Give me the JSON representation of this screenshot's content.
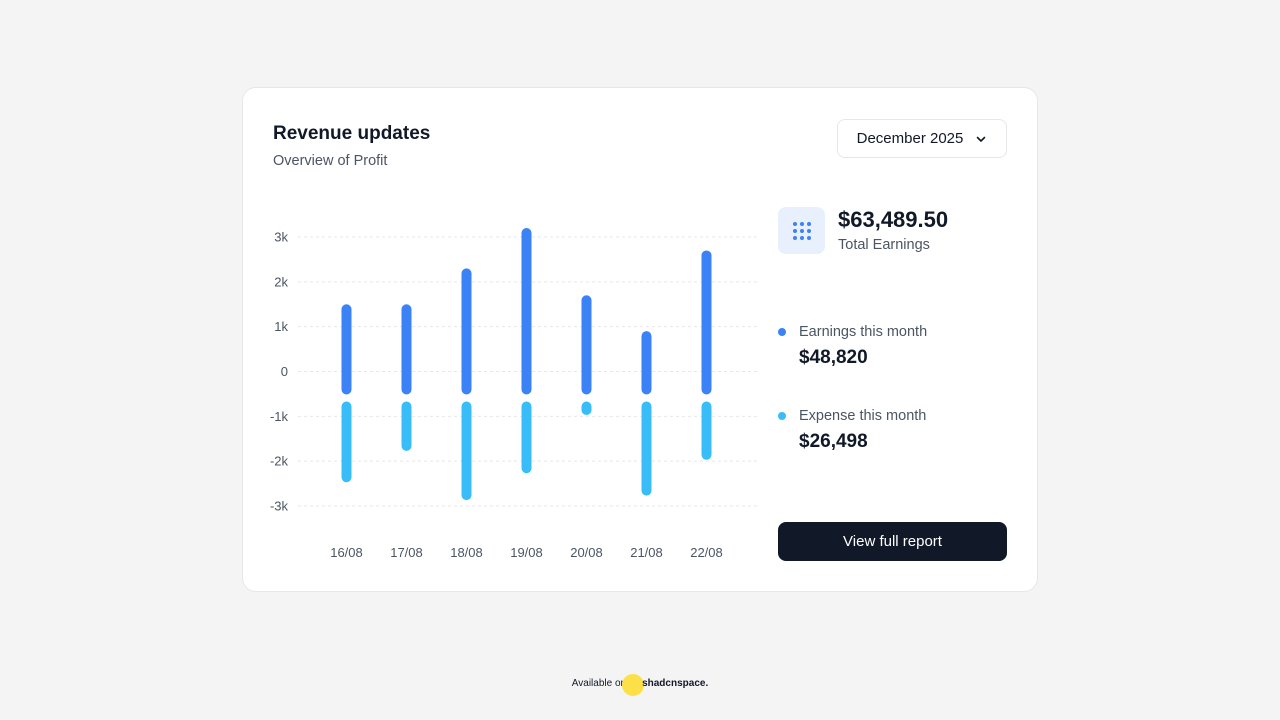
{
  "card": {
    "title": "Revenue updates",
    "subtitle": "Overview of Profit",
    "month_selector": {
      "value": "December 2025",
      "icon": "chevron-down-icon"
    }
  },
  "summary": {
    "total_value": "$63,489.50",
    "total_label": "Total Earnings",
    "icon": "grid-dots-icon",
    "earnings": {
      "label": "Earnings this month",
      "value": "$48,820",
      "color": "#3b82f6"
    },
    "expense": {
      "label": "Expense this month",
      "value": "$26,498",
      "color": "#38bdf8"
    },
    "button_label": "View full report"
  },
  "footer": {
    "available_on": "Available on",
    "brand": "shadcnspace."
  },
  "colors": {
    "earnings": "#3b82f6",
    "expense": "#38bdf8",
    "button": "#111827"
  },
  "chart_data": {
    "type": "bar",
    "stacked": "diverging",
    "categories": [
      "16/08",
      "17/08",
      "18/08",
      "19/08",
      "20/08",
      "21/08",
      "22/08"
    ],
    "series": [
      {
        "name": "Earnings this month",
        "values": [
          1500,
          1500,
          2300,
          3200,
          1700,
          900,
          2700
        ]
      },
      {
        "name": "Expense this month",
        "values": [
          -1800,
          -1100,
          -2200,
          -1600,
          -300,
          -2100,
          -1300
        ]
      }
    ],
    "yticks": [
      "3k",
      "2k",
      "1k",
      "0",
      "-1k",
      "-2k",
      "-3k"
    ],
    "ylim": [
      -3000,
      3000
    ],
    "grid": true
  }
}
